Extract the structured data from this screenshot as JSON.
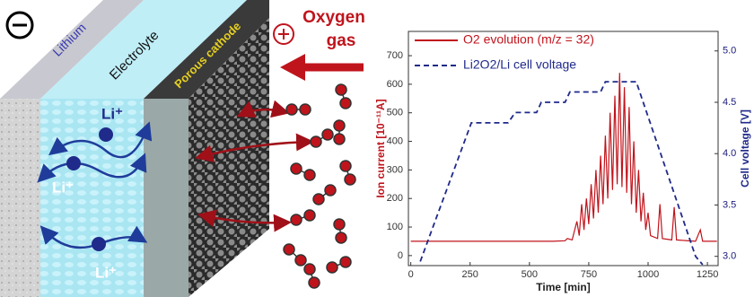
{
  "diagram": {
    "lithium": "Lithium",
    "electrolyte": "Electrolyte",
    "cathode": "Porous cathode",
    "oxygen": "Oxygen",
    "gas": "gas",
    "ions": [
      "Li⁺",
      "Li⁺",
      "Li⁺"
    ]
  },
  "chart_data": {
    "type": "line",
    "x_label": "Time [min]",
    "y_label": "Ion current [10⁻¹¹A]",
    "y2_label": "Cell voltage [V]",
    "xlim": [
      -10,
      1295
    ],
    "xticks": [
      0,
      250,
      500,
      750,
      1000,
      1250
    ],
    "ylim": [
      -35,
      785
    ],
    "yticks": [
      0,
      100,
      200,
      300,
      400,
      500,
      600,
      700
    ],
    "y2lim": [
      2.91,
      5.19
    ],
    "y2ticks": [
      {
        "value": 3,
        "label": "3.0"
      },
      3.5,
      {
        "value": 4,
        "label": "4.0"
      },
      4.5,
      {
        "value": 5,
        "label": "5.0"
      }
    ],
    "series": [
      {
        "name": "O2 evolution (m/z = 32)",
        "color": "#c0141c",
        "style": "solid",
        "x": [
          0,
          100,
          200,
          300,
          400,
          500,
          600,
          650,
          660,
          680,
          700,
          710,
          720,
          730,
          740,
          750,
          760,
          770,
          780,
          790,
          800,
          810,
          820,
          830,
          840,
          850,
          860,
          870,
          880,
          890,
          900,
          910,
          920,
          930,
          940,
          950,
          960,
          970,
          980,
          990,
          1000,
          1010,
          1040,
          1050,
          1060,
          1100,
          1110,
          1120,
          1200,
          1220,
          1230,
          1290
        ],
        "values": [
          50,
          50,
          50,
          50,
          50,
          50,
          50,
          52,
          60,
          55,
          120,
          70,
          180,
          90,
          200,
          110,
          250,
          130,
          300,
          150,
          350,
          180,
          420,
          200,
          500,
          230,
          560,
          250,
          640,
          240,
          590,
          220,
          520,
          180,
          400,
          150,
          300,
          120,
          220,
          90,
          150,
          70,
          60,
          180,
          60,
          55,
          170,
          55,
          50,
          90,
          50,
          50
        ]
      },
      {
        "name": "Li2O2/Li cell voltage",
        "color": "#1f2a8a",
        "style": "dashed",
        "axis": "y2",
        "x": [
          40,
          255,
          410,
          440,
          530,
          550,
          650,
          670,
          800,
          820,
          950,
          1200,
          1230
        ],
        "values": [
          2.95,
          4.3,
          4.3,
          4.4,
          4.4,
          4.5,
          4.5,
          4.6,
          4.6,
          4.7,
          4.7,
          3.0,
          2.92
        ]
      }
    ]
  }
}
